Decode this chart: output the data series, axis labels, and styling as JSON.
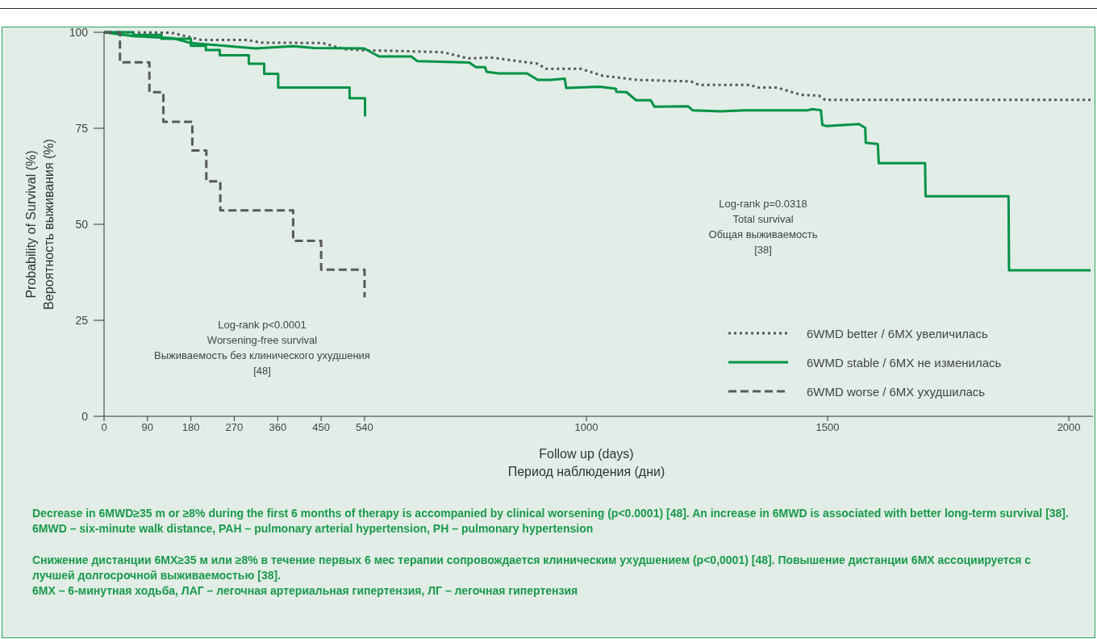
{
  "chart_data": {
    "type": "line",
    "xlabel": "Follow up (days)\nПериод наблюдения (дни)",
    "ylabel": "Probability of Survival (%)\nВероятность выживания (%)",
    "xlim": [
      0,
      2050
    ],
    "xticks": [
      0,
      90,
      180,
      270,
      360,
      450,
      540,
      1000,
      1500,
      2000
    ],
    "ylim": [
      0,
      100
    ],
    "yticks": [
      0,
      25,
      50,
      75,
      100
    ],
    "grid": false,
    "legend": "bottom right",
    "series": [
      {
        "name": "6WMD better / 6MX увеличилась",
        "color": "#555555",
        "line_style": "dotted",
        "x": [
          0,
          139,
          202,
          297,
          326,
          453,
          498,
          541,
          620,
          704,
          754,
          804,
          899,
          916,
          988,
          1033,
          1105,
          1217,
          1233,
          1339,
          1356,
          1395,
          1445,
          1482,
          1495,
          2045
        ],
        "values": [
          100,
          99.9,
          98,
          98,
          97.3,
          97.2,
          95.6,
          95.3,
          95.1,
          94.8,
          93.2,
          93.4,
          91.8,
          90.5,
          90.5,
          88.7,
          87.6,
          87.2,
          86.3,
          86.3,
          85.6,
          85.6,
          83.7,
          83.5,
          82.4,
          82.4
        ]
      },
      {
        "name": "6WMD stable / 6MX не изменилась",
        "color": "#009245",
        "line_style": "solid",
        "x": [
          0,
          60,
          141,
          180,
          314,
          392,
          436,
          539,
          570,
          637,
          649,
          757,
          771,
          790,
          793,
          818,
          877,
          899,
          927,
          955,
          958,
          1027,
          1061,
          1062,
          1083,
          1103,
          1133,
          1141,
          1211,
          1220,
          1278,
          1328,
          1459,
          1468,
          1486,
          1489,
          1497,
          1565,
          1578,
          1579,
          1604,
          1606,
          1702,
          1703,
          1875,
          1876,
          2045
        ],
        "values": [
          100,
          99,
          98.5,
          97.2,
          95.8,
          96.4,
          95.9,
          95.8,
          93.7,
          93.7,
          92.5,
          92.1,
          90.9,
          90.9,
          89.7,
          89.3,
          89.3,
          87.6,
          87.6,
          87.9,
          85.5,
          85.8,
          85.3,
          84.5,
          84.4,
          82.3,
          82.3,
          80.6,
          80.7,
          79.7,
          79.4,
          79.7,
          79.7,
          80,
          79.7,
          75.9,
          75.6,
          76.1,
          75.1,
          71.2,
          70.9,
          65.9,
          65.9,
          57.3,
          57.3,
          38,
          38
        ]
      },
      {
        "color": "#009245",
        "line_style": "solid",
        "x": [
          0,
          60,
          60,
          119,
          119,
          180,
          180,
          211,
          211,
          240,
          240,
          300,
          300,
          332,
          332,
          361,
          361,
          509,
          509,
          541,
          541
        ],
        "values": [
          100,
          100,
          99.3,
          99.3,
          98.3,
          98.3,
          96.5,
          96.5,
          95.4,
          95.4,
          94,
          94,
          91.8,
          91.8,
          89.2,
          89.2,
          85.6,
          85.6,
          82.8,
          82.8,
          78.1
        ]
      },
      {
        "name": "6WMD worse / 6MX ухудшилась",
        "color": "#595959",
        "line_style": "dashed",
        "x": [
          0,
          33,
          33,
          94,
          94,
          123,
          123,
          183,
          183,
          212,
          212,
          241,
          241,
          392,
          392,
          450,
          450,
          540,
          540
        ],
        "values": [
          100,
          100,
          92.2,
          92.2,
          84.4,
          84.4,
          76.7,
          76.7,
          69.2,
          69.2,
          61.2,
          61.2,
          53.6,
          53.6,
          45.7,
          45.7,
          38.2,
          38.2,
          31
        ]
      }
    ],
    "annotations": [
      "Log-rank p<0.0001\nWorsening-free survival\nВыживаемость без клинического ухудшения\n[48]",
      "Log-rank p=0.0318\nTotal survival\nОбщая выживаемость\n[38]",
      "Decrease in 6MWD≥35 m or ≥8% during the first 6 months of therapy is accompanied by clinical worsening (p<0.0001) [48]. An increase in 6MWD is associated with better long-term survival [38].",
      "6MWD – six-minute walk distance, PAH – pulmonary arterial hypertension, PH – pulmonary hypertension",
      "Снижение дистанции 6МХ≥35 м или ≥8% в течение первых 6 мес терапии сопровождается клиническим ухудшением (p<0,0001) [48]. Повышение дистанции 6МХ ассоциируется с лучшей долгосрочной выживаемостью [38].",
      "6МХ – 6-минутная ходьба, ЛАГ – легочная артериальная гипертензия, ЛГ – легочная гипертензия"
    ]
  }
}
